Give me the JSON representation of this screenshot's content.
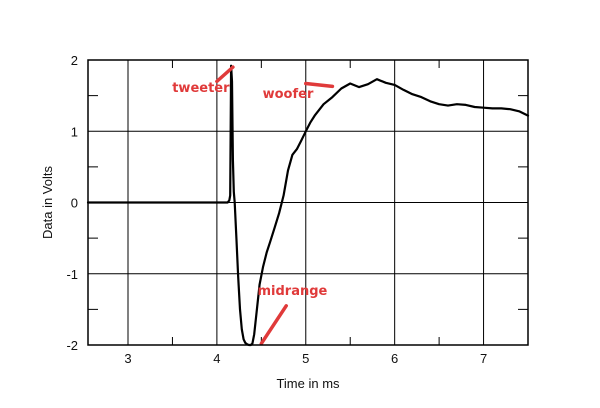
{
  "chart_data": {
    "type": "line",
    "title": "",
    "xlabel": "Time in ms",
    "ylabel": "Data in Volts",
    "xlim": [
      2.55,
      7.5
    ],
    "ylim": [
      -2,
      2
    ],
    "x_ticks": [
      3,
      4,
      5,
      6,
      7
    ],
    "y_ticks": [
      2,
      1,
      0,
      -1,
      -2
    ],
    "grid": true,
    "annotation_color": "#e03a3a",
    "line_color": "#000000",
    "annotations": [
      {
        "text": "tweeter",
        "text_x": 3.82,
        "text_y": 1.55,
        "line_from": [
          4.0,
          1.7
        ],
        "line_to": [
          4.18,
          1.9
        ]
      },
      {
        "text": "woofer",
        "text_x": 4.8,
        "text_y": 1.47,
        "line_from": [
          5.0,
          1.67
        ],
        "line_to": [
          5.3,
          1.63
        ]
      },
      {
        "text": "midrange",
        "text_x": 4.85,
        "text_y": -1.3,
        "line_from": [
          4.78,
          -1.45
        ],
        "line_to": [
          4.5,
          -1.98
        ]
      }
    ],
    "series": [
      {
        "x": [
          2.55,
          3.0,
          3.5,
          4.0,
          4.12,
          4.14,
          4.15,
          4.16,
          4.17,
          4.18,
          4.19,
          4.2,
          4.22,
          4.24,
          4.26,
          4.28,
          4.3,
          4.32,
          4.34,
          4.36,
          4.38,
          4.4,
          4.42,
          4.45,
          4.48,
          4.52,
          4.56,
          4.6,
          4.65,
          4.7,
          4.75,
          4.8,
          4.85,
          4.9,
          4.95,
          5.0,
          5.05,
          5.1,
          5.2,
          5.3,
          5.4,
          5.5,
          5.6,
          5.7,
          5.8,
          5.9,
          6.0,
          6.1,
          6.2,
          6.3,
          6.4,
          6.5,
          6.6,
          6.7,
          6.8,
          6.9,
          7.0,
          7.1,
          7.2,
          7.3,
          7.4,
          7.5
        ],
        "y": [
          0.0,
          0.0,
          0.0,
          0.0,
          0.0,
          0.03,
          0.1,
          1.92,
          1.7,
          0.6,
          0.15,
          0.0,
          -0.5,
          -1.05,
          -1.5,
          -1.78,
          -1.92,
          -1.97,
          -1.99,
          -2.0,
          -2.0,
          -1.98,
          -1.85,
          -1.5,
          -1.15,
          -0.9,
          -0.7,
          -0.55,
          -0.35,
          -0.15,
          0.1,
          0.45,
          0.67,
          0.75,
          0.87,
          1.0,
          1.12,
          1.22,
          1.38,
          1.48,
          1.6,
          1.67,
          1.62,
          1.66,
          1.73,
          1.68,
          1.65,
          1.58,
          1.52,
          1.48,
          1.42,
          1.38,
          1.36,
          1.38,
          1.37,
          1.34,
          1.33,
          1.32,
          1.32,
          1.31,
          1.28,
          1.22
        ]
      }
    ]
  }
}
